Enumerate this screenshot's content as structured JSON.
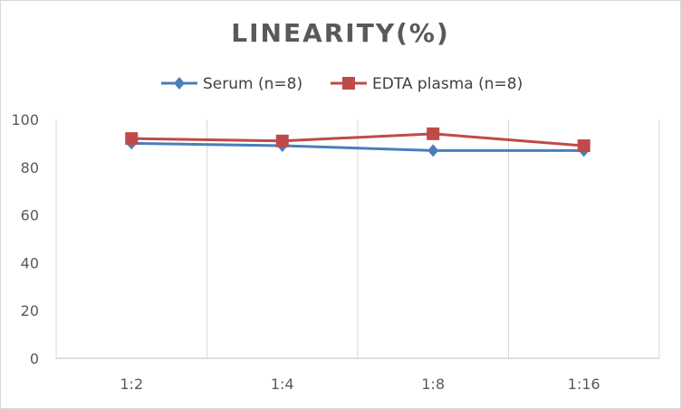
{
  "chart_data": {
    "type": "line",
    "title": "LINEARITY(%)",
    "categories": [
      "1:2",
      "1:4",
      "1:8",
      "1:16"
    ],
    "series": [
      {
        "name": "Serum (n=8)",
        "values": [
          90,
          89,
          87,
          87
        ],
        "color": "#4a7ebb",
        "marker": "diamond"
      },
      {
        "name": "EDTA plasma (n=8)",
        "values": [
          92,
          91,
          94,
          89
        ],
        "color": "#be4b48",
        "marker": "square"
      }
    ],
    "ylim": [
      0,
      100
    ],
    "yticks": [
      0,
      20,
      40,
      60,
      80,
      100
    ],
    "xlabel": "",
    "ylabel": "",
    "grid": "vertical",
    "legend": "top"
  }
}
